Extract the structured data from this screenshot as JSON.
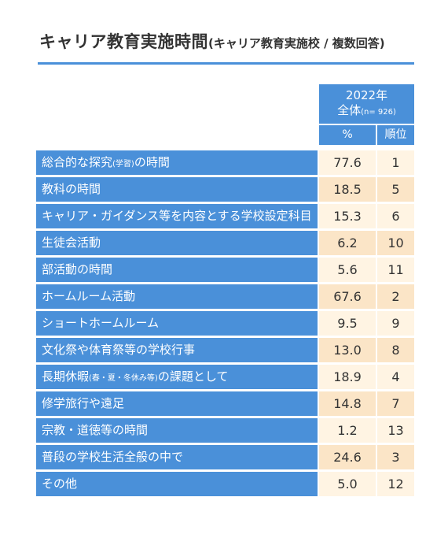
{
  "title": {
    "main": "キャリア教育実施時間",
    "sub": "(キャリア教育実施校 / 複数回答)"
  },
  "colors": {
    "header_blue": "#4a90d9",
    "row_light": "#fff4e3",
    "row_dark": "#fbe5c7"
  },
  "chart_data": {
    "type": "table",
    "column_group": {
      "year": "2022年",
      "group": "全体",
      "n_label": "(n= 926)"
    },
    "columns": [
      "%",
      "順位"
    ],
    "rows": [
      {
        "label": "総合的な探究",
        "label_small": "(学習)",
        "label_suffix": "の時間",
        "percent": "77.6",
        "rank": "1"
      },
      {
        "label": "教科の時間",
        "percent": "18.5",
        "rank": "5"
      },
      {
        "label": "キャリア・ガイダンス等を内容とする学校設定科目",
        "percent": "15.3",
        "rank": "6"
      },
      {
        "label": "生徒会活動",
        "percent": "6.2",
        "rank": "10"
      },
      {
        "label": "部活動の時間",
        "percent": "5.6",
        "rank": "11"
      },
      {
        "label": "ホームルーム活動",
        "percent": "67.6",
        "rank": "2"
      },
      {
        "label": "ショートホームルーム",
        "percent": "9.5",
        "rank": "9"
      },
      {
        "label": "文化祭や体育祭等の学校行事",
        "percent": "13.0",
        "rank": "8"
      },
      {
        "label": "長期休暇",
        "label_small": "(春・夏・冬休み等)",
        "label_suffix": "の課題として",
        "percent": "18.9",
        "rank": "4"
      },
      {
        "label": "修学旅行や遠足",
        "percent": "14.8",
        "rank": "7"
      },
      {
        "label": "宗教・道徳等の時間",
        "percent": "1.2",
        "rank": "13"
      },
      {
        "label": "普段の学校生活全般の中で",
        "percent": "24.6",
        "rank": "3"
      },
      {
        "label": "その他",
        "percent": "5.0",
        "rank": "12"
      }
    ]
  }
}
